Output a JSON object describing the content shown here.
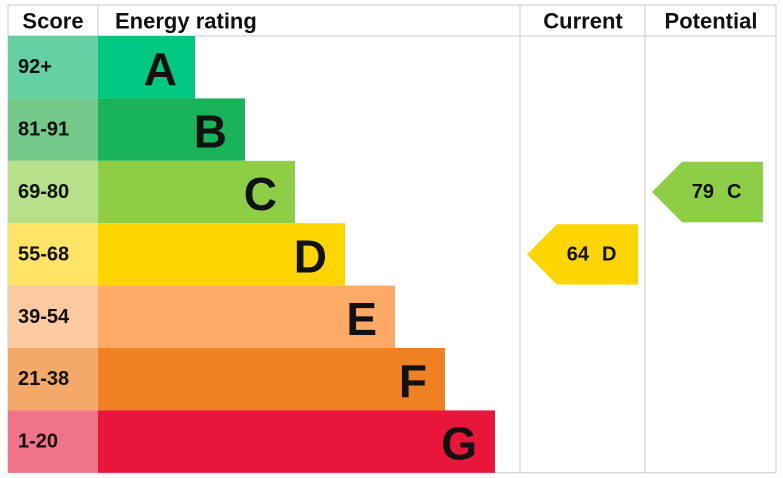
{
  "header": {
    "score": "Score",
    "energy_rating": "Energy rating",
    "current": "Current",
    "potential": "Potential"
  },
  "bands": [
    {
      "score": "92+",
      "letter": "A",
      "color": "#00c781",
      "score_color": "#66cfa4"
    },
    {
      "score": "81-91",
      "letter": "B",
      "color": "#19b459",
      "score_color": "#74c98b"
    },
    {
      "score": "69-80",
      "letter": "C",
      "color": "#8dce46",
      "score_color": "#b8e08b"
    },
    {
      "score": "55-68",
      "letter": "D",
      "color": "#ffd500",
      "score_color": "#ffe466"
    },
    {
      "score": "39-54",
      "letter": "E",
      "color": "#fcaa65",
      "score_color": "#fdcaa1"
    },
    {
      "score": "21-38",
      "letter": "F",
      "color": "#ef8023",
      "score_color": "#f4a96a"
    },
    {
      "score": "1-20",
      "letter": "G",
      "color": "#e9153b",
      "score_color": "#f07389"
    }
  ],
  "current": {
    "score": 64,
    "letter": "D"
  },
  "potential": {
    "score": 79,
    "letter": "C"
  }
}
